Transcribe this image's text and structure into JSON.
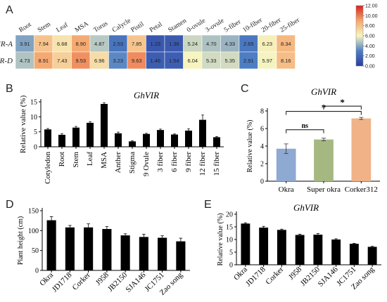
{
  "panels": {
    "A": "A",
    "B": "B",
    "C": "C",
    "D": "D",
    "E": "E"
  },
  "chart_data": [
    {
      "panel": "A",
      "type": "heatmap",
      "columns": [
        "Root",
        "Stem",
        "Leaf",
        "MSA",
        "Torus",
        "Calycle",
        "Pistil",
        "Petal",
        "Stamen",
        "0-ovule",
        "3-ovule",
        "5-fiber",
        "10-fiber",
        "20-fiber",
        "25-fiber"
      ],
      "rows": [
        {
          "name": "GhVIR-A",
          "values": [
            3.91,
            7.94,
            6.68,
            8.9,
            4.87,
            2.53,
            7.85,
            1.23,
            1.36,
            5.24,
            4.7,
            4.33,
            2.65,
            6.23,
            8.34
          ]
        },
        {
          "name": "GhVIR-D",
          "values": [
            4.73,
            8.91,
            7.43,
            9.53,
            6.96,
            3.23,
            9.63,
            1.46,
            1.54,
            6.04,
            5.33,
            5.35,
            2.91,
            5.97,
            8.16
          ]
        }
      ],
      "colorbar": {
        "ticks": [
          "12.00",
          "10.00",
          "8.00",
          "6.00",
          "4.00",
          "2.00",
          "0.00"
        ],
        "min": 0,
        "max": 12,
        "colors": [
          "#2b3c9e",
          "#4e7fc4",
          "#f7f5c0",
          "#f5a76f",
          "#d7231f"
        ]
      }
    },
    {
      "panel": "B",
      "type": "bar",
      "title": "GhVIR",
      "ylabel": "Relative value (%)",
      "categories": [
        "Cotyledon",
        "Root",
        "Stem",
        "Leaf",
        "MSA",
        "Anther",
        "Stigma",
        "9 Ovule",
        "3 fiber",
        "6 fiber",
        "9 fiber",
        "12 fiber",
        "15 fiber"
      ],
      "values": [
        5.8,
        4.0,
        6.4,
        8.0,
        14.3,
        4.5,
        1.8,
        4.3,
        5.6,
        4.1,
        5.4,
        9.0,
        3.2
      ],
      "errors": [
        0.3,
        0.4,
        0.4,
        0.4,
        0.4,
        0.4,
        0.2,
        0.2,
        0.3,
        0.2,
        0.6,
        1.6,
        0.2
      ],
      "ylim": [
        0,
        15
      ],
      "yticks": [
        0,
        5,
        10,
        15
      ]
    },
    {
      "panel": "C",
      "type": "bar",
      "title": "GhVIR",
      "ylabel": "Relative value (%)",
      "categories": [
        "Okra",
        "Super okra",
        "Corker312"
      ],
      "values": [
        3.7,
        4.75,
        7.15
      ],
      "errors": [
        0.55,
        0.15,
        0.12
      ],
      "colors": [
        "#8ea9d2",
        "#a5b882",
        "#f0b286"
      ],
      "ylim": [
        0,
        8
      ],
      "yticks": [
        0,
        2,
        4,
        6,
        8
      ],
      "annotations": [
        {
          "from": "Okra",
          "to": "Super okra",
          "label": "ns"
        },
        {
          "from": "Super okra",
          "to": "Corker312",
          "label": "*"
        },
        {
          "from": "Okra",
          "to": "Corker312",
          "label": "*"
        }
      ]
    },
    {
      "panel": "D",
      "type": "bar",
      "ylabel": "Plant height (cm)",
      "categories": [
        "Okra",
        "JD1718",
        "Corker",
        "J958",
        "JB2150",
        "SJA146",
        "JC1751",
        "Zao song"
      ],
      "values": [
        126,
        108,
        108,
        104,
        88,
        84,
        82,
        73
      ],
      "errors": [
        9,
        5,
        9,
        6,
        4,
        7,
        5,
        8
      ],
      "ylim": [
        0,
        150
      ],
      "yticks": [
        0,
        50,
        100,
        150
      ]
    },
    {
      "panel": "E",
      "type": "bar",
      "title": "GhVIR",
      "ylabel": "Relative value (%)",
      "categories": [
        "Okra",
        "JD1718",
        "Corker",
        "J958",
        "JB2150",
        "SJA146",
        "JC1751",
        "Zao song"
      ],
      "values": [
        16.3,
        14.7,
        13.8,
        11.8,
        11.9,
        10.0,
        8.3,
        7.1
      ],
      "errors": [
        0.3,
        0.5,
        0.3,
        0.3,
        0.5,
        0.3,
        0.2,
        0.2
      ],
      "ylim": [
        0,
        20
      ],
      "yticks": [
        0,
        5,
        10,
        15,
        20
      ]
    }
  ]
}
